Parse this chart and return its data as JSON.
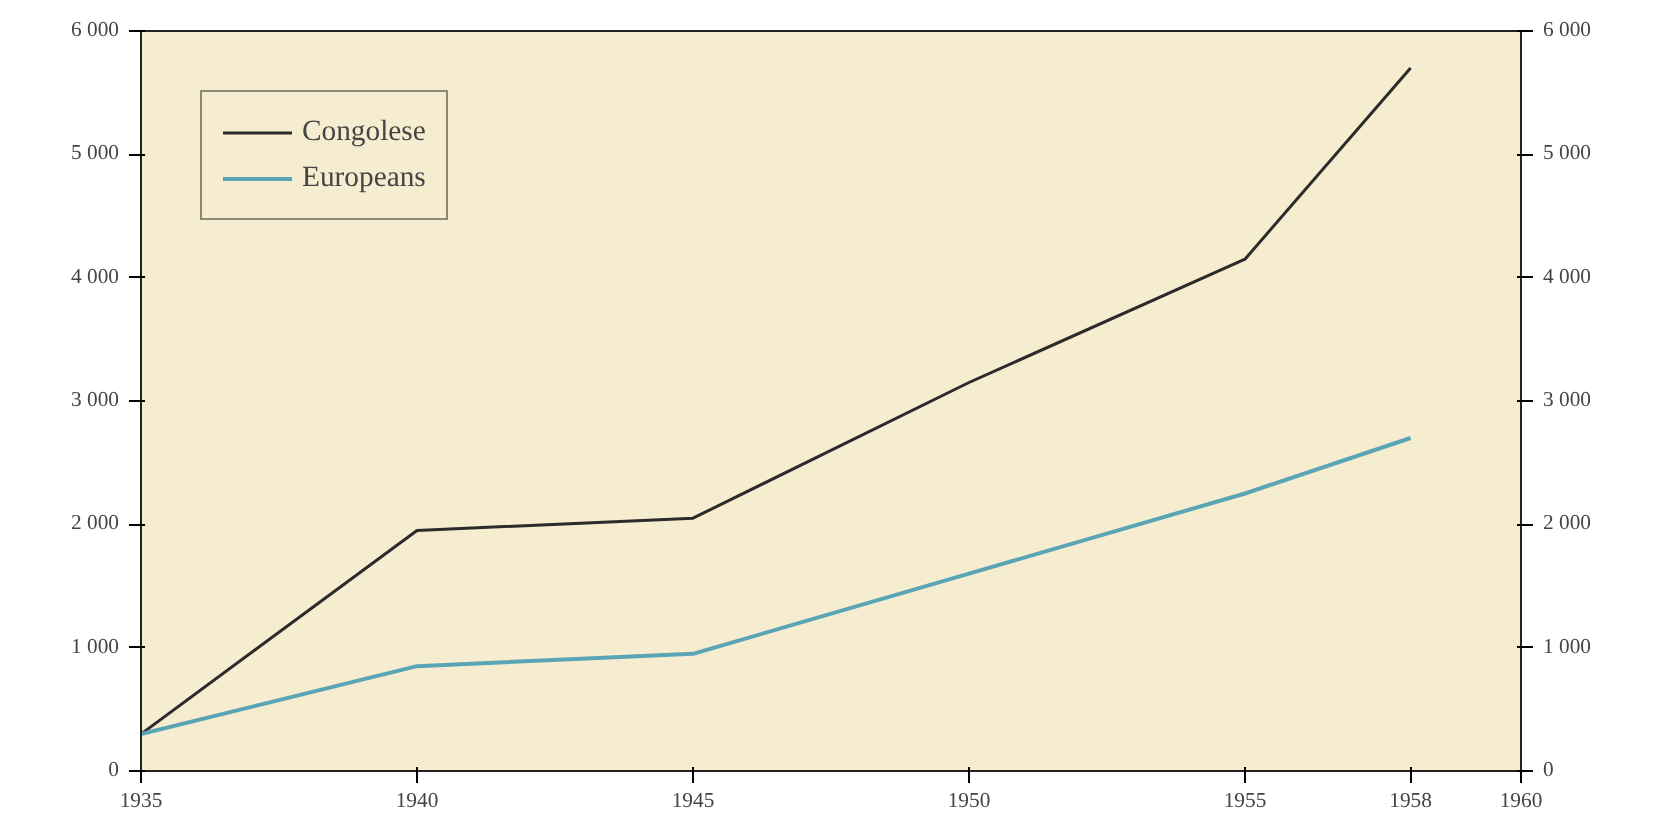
{
  "chart_data": {
    "type": "line",
    "x": [
      1935,
      1940,
      1945,
      1950,
      1955,
      1958
    ],
    "series": [
      {
        "name": "Congolese",
        "color": "#2b2b2b",
        "values": [
          300,
          1950,
          2050,
          3150,
          4150,
          5700
        ]
      },
      {
        "name": "Europeans",
        "color": "#5aa5b5",
        "values": [
          300,
          850,
          950,
          1600,
          2250,
          2700
        ]
      }
    ],
    "xlim": [
      1935,
      1960
    ],
    "xticks": [
      1935,
      1940,
      1945,
      1950,
      1955,
      1958,
      1960
    ],
    "ylim": [
      0,
      6000
    ],
    "yticks": [
      {
        "value": 0,
        "label": "0"
      },
      {
        "value": 1000,
        "label": "1 000"
      },
      {
        "value": 2000,
        "label": "2 000"
      },
      {
        "value": 3000,
        "label": "3 000"
      },
      {
        "value": 4000,
        "label": "4 000"
      },
      {
        "value": 5000,
        "label": "5 000"
      },
      {
        "value": 6000,
        "label": "6 000"
      }
    ],
    "y2lim": [
      0,
      6000
    ],
    "y2ticks": [
      {
        "value": 0,
        "label": "0"
      },
      {
        "value": 1000,
        "label": "1 000"
      },
      {
        "value": 2000,
        "label": "2 000"
      },
      {
        "value": 3000,
        "label": "3 000"
      },
      {
        "value": 4000,
        "label": "4 000"
      },
      {
        "value": 5000,
        "label": "5 000"
      },
      {
        "value": 6000,
        "label": "6 000"
      }
    ],
    "legend": "top left",
    "grid": false,
    "marker": "none",
    "line_style": "solid"
  }
}
